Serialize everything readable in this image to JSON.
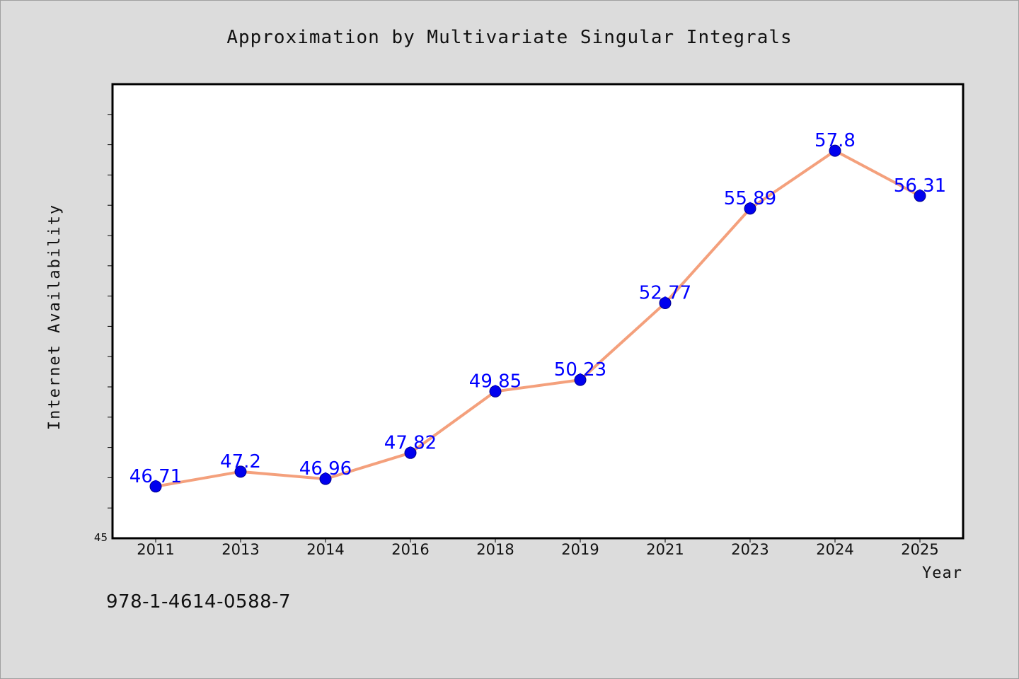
{
  "chart_data": {
    "type": "line",
    "title": "Approximation by Multivariate Singular Integrals",
    "xlabel": "Year",
    "ylabel": "Internet Availability",
    "categories": [
      "2011",
      "2013",
      "2014",
      "2016",
      "2018",
      "2019",
      "2021",
      "2023",
      "2024",
      "2025"
    ],
    "series": [
      {
        "values": [
          46.71,
          47.2,
          46.96,
          47.82,
          49.85,
          50.23,
          52.77,
          55.89,
          57.8,
          56.31
        ],
        "value_labels": [
          "46.71",
          "47.2",
          "46.96",
          "47.82",
          "49.85",
          "50.23",
          "52.77",
          "55.89",
          "57.8",
          "56.31"
        ]
      }
    ],
    "ylim": [
      45,
      60
    ],
    "y_tick_labels": [
      "45"
    ],
    "grid": false,
    "legend": "none",
    "colors": {
      "line": "#f4a07c",
      "marker": "#0000ee",
      "label": "#0000ff",
      "plot_background": "#ffffff",
      "page_background": "#dcdcdc"
    }
  },
  "footer": {
    "isbn": "978-1-4614-0588-7"
  }
}
